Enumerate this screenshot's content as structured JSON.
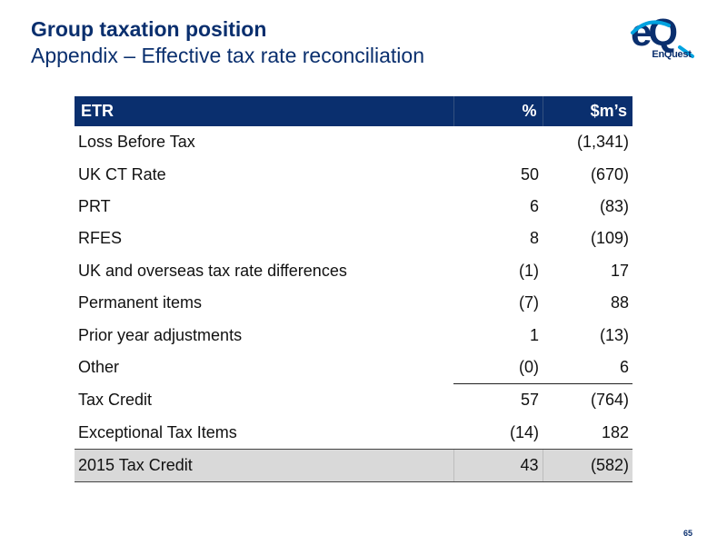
{
  "header": {
    "title": "Group taxation position",
    "subtitle": "Appendix – Effective tax rate reconciliation"
  },
  "logo": {
    "brand": "EnQuest",
    "icon": "eq-logo-icon",
    "colors": {
      "primary": "#0a2f6e",
      "accent": "#00a3e0"
    }
  },
  "table": {
    "headers": {
      "label": "ETR",
      "pct": "%",
      "usd": "$m’s"
    },
    "rows": [
      {
        "label": "Loss Before Tax",
        "pct": "",
        "usd": "(1,341)"
      },
      {
        "label": "UK CT Rate",
        "pct": "50",
        "usd": "(670)"
      },
      {
        "label": "PRT",
        "pct": "6",
        "usd": "(83)"
      },
      {
        "label": "RFES",
        "pct": "8",
        "usd": "(109)"
      },
      {
        "label": "UK and overseas tax rate differences",
        "pct": "(1)",
        "usd": "17"
      },
      {
        "label": "Permanent items",
        "pct": "(7)",
        "usd": "88"
      },
      {
        "label": "Prior year adjustments",
        "pct": "1",
        "usd": "(13)"
      },
      {
        "label": "Other",
        "pct": "(0)",
        "usd": "6"
      },
      {
        "label": "Tax Credit",
        "pct": "57",
        "usd": "(764)"
      },
      {
        "label": "Exceptional Tax Items",
        "pct": "(14)",
        "usd": "182"
      }
    ],
    "total": {
      "label": "2015 Tax Credit",
      "pct": "43",
      "usd": "(582)"
    }
  },
  "footer": {
    "page_number": "65"
  }
}
